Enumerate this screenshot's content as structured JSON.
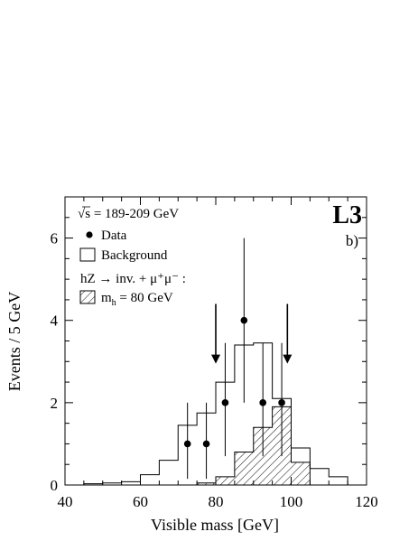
{
  "chart_data": {
    "type": "histogram",
    "experiment": "L3",
    "panel_label": "b)",
    "energy_label": "√s = 189-209 GeV",
    "xlabel": "Visible mass  [GeV]",
    "ylabel": "Events / 5 GeV",
    "xlim": [
      40,
      120
    ],
    "ylim": [
      0,
      7
    ],
    "x_ticks": [
      40,
      60,
      80,
      100,
      120
    ],
    "y_ticks": [
      0,
      2,
      4,
      6
    ],
    "legend": {
      "data": "Data",
      "background": "Background",
      "signal_process": "hZ → inv. + μ⁺μ⁻ :",
      "signal": "m",
      "signal_sub": "h",
      "signal_rest": " = 80 GeV"
    },
    "bin_width": 5,
    "background": {
      "bin_low_edges": [
        40,
        45,
        50,
        55,
        60,
        65,
        70,
        75,
        80,
        85,
        90,
        95,
        100,
        105,
        110,
        115
      ],
      "values": [
        0.0,
        0.03,
        0.05,
        0.08,
        0.25,
        0.6,
        1.45,
        1.75,
        2.5,
        3.4,
        3.45,
        2.1,
        0.9,
        0.4,
        0.2,
        0.0
      ]
    },
    "signal": {
      "bin_low_edges": [
        75,
        80,
        85,
        90,
        95,
        100
      ],
      "values": [
        0.05,
        0.2,
        0.8,
        1.4,
        1.9,
        0.55
      ]
    },
    "data_points": [
      {
        "x": 72.5,
        "y": 1,
        "err_low": 0.85,
        "err_high": 1.0
      },
      {
        "x": 77.5,
        "y": 1,
        "err_low": 0.85,
        "err_high": 1.0
      },
      {
        "x": 82.5,
        "y": 2,
        "err_low": 1.3,
        "err_high": 1.45
      },
      {
        "x": 87.5,
        "y": 4,
        "err_low": 2.0,
        "err_high": 2.0
      },
      {
        "x": 92.5,
        "y": 2,
        "err_low": 1.3,
        "err_high": 1.45
      },
      {
        "x": 97.5,
        "y": 2,
        "err_low": 1.3,
        "err_high": 1.45
      }
    ],
    "cut_arrows": [
      80,
      99
    ]
  }
}
